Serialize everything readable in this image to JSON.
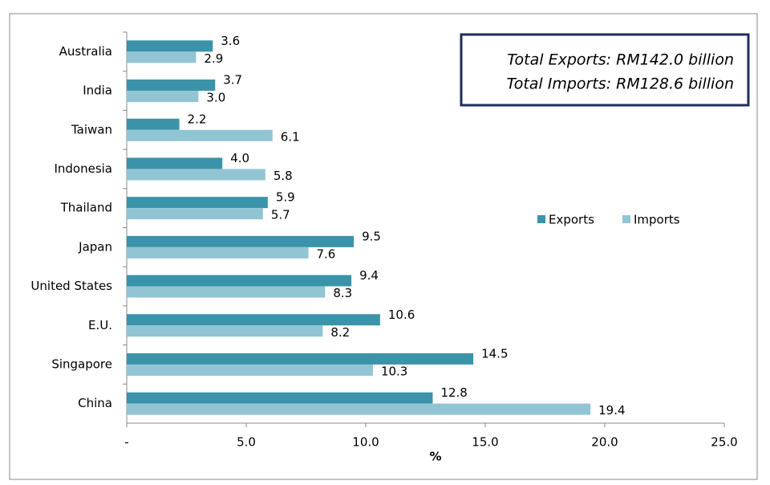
{
  "chart_data": {
    "type": "hbar",
    "categories": [
      "Australia",
      "India",
      "Taiwan",
      "Indonesia",
      "Thailand",
      "Japan",
      "United States",
      "E.U.",
      "Singapore",
      "China"
    ],
    "series": [
      {
        "name": "Exports",
        "color": "#3a93a8",
        "values": [
          3.6,
          3.7,
          2.2,
          4.0,
          5.9,
          9.5,
          9.4,
          10.6,
          14.5,
          12.8
        ],
        "value_labels": [
          "3.6",
          "3.7",
          "2.2",
          "4.0",
          "5.9",
          "9.5",
          "9.4",
          "10.6",
          "14.5",
          "12.8"
        ]
      },
      {
        "name": "Imports",
        "color": "#92c5d3",
        "values": [
          2.9,
          3.0,
          6.1,
          5.8,
          5.7,
          7.6,
          8.3,
          8.2,
          10.3,
          19.4
        ],
        "value_labels": [
          "2.9",
          "3.0",
          "6.1",
          "5.8",
          "5.7",
          "7.6",
          "8.3",
          "8.2",
          "10.3",
          "19.4"
        ]
      }
    ],
    "xlabel": "%",
    "xlim": [
      0,
      25
    ],
    "xticks": [
      {
        "value": 0,
        "label": "-"
      },
      {
        "value": 5,
        "label": "5.0"
      },
      {
        "value": 10,
        "label": "10.0"
      },
      {
        "value": 15,
        "label": "15.0"
      },
      {
        "value": 20,
        "label": "20.0"
      },
      {
        "value": 25,
        "label": "25.0"
      }
    ],
    "grid": false,
    "legend": "right",
    "annotations": [
      "Total Exports: RM142.0 billion",
      "Total Imports: RM128.6 billion"
    ]
  }
}
